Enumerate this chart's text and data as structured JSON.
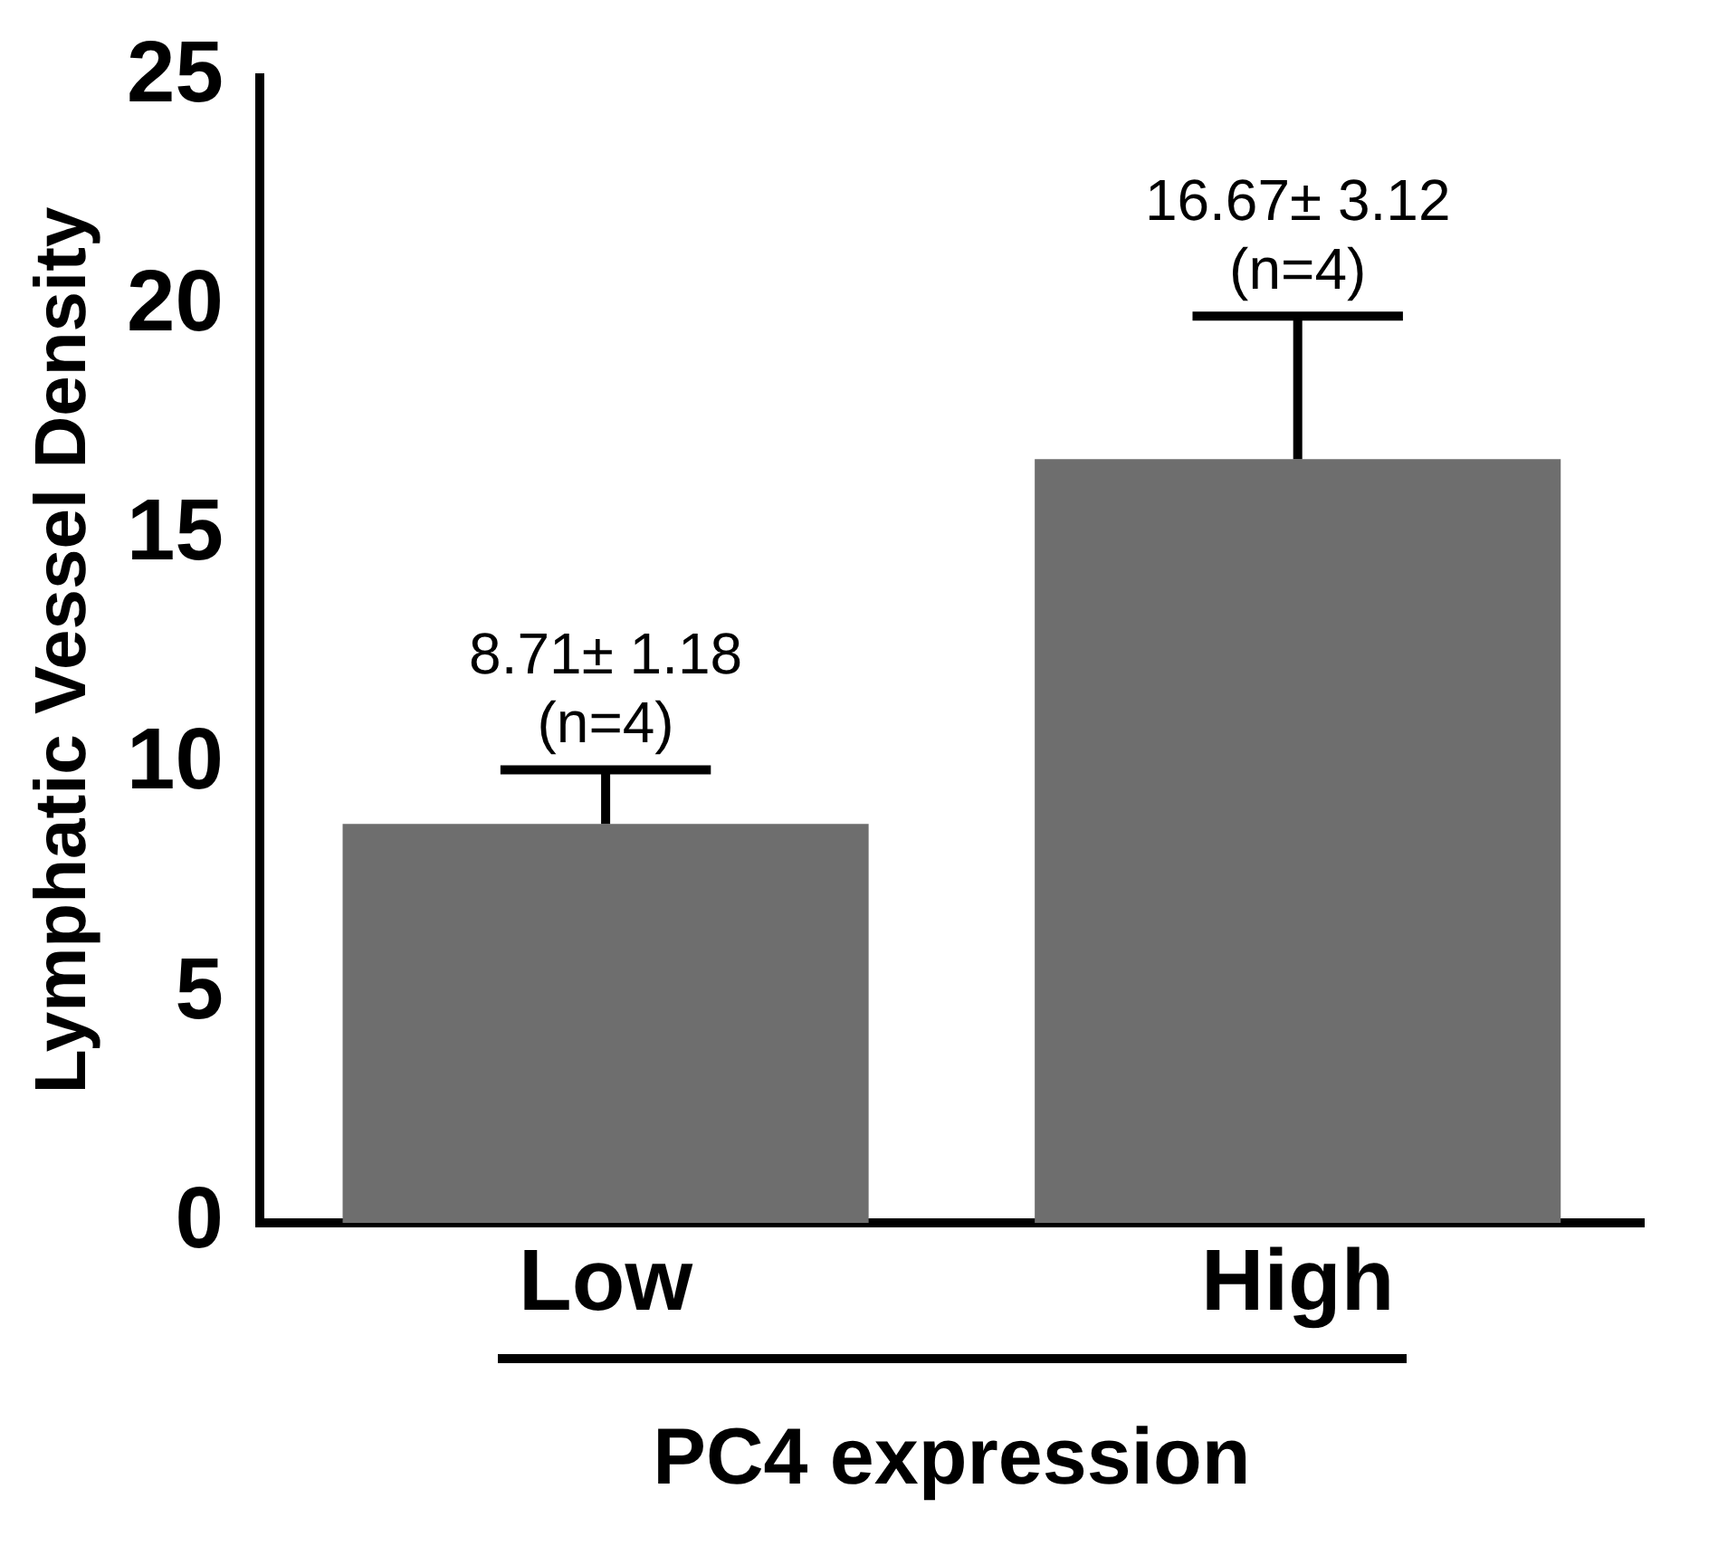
{
  "chart_data": {
    "type": "bar",
    "ylabel": "Lymphatic Vessel Density",
    "xlabel": "PC4 expression",
    "categories": [
      "Low",
      "High"
    ],
    "values": [
      8.71,
      16.67
    ],
    "color": "#6e6e6e",
    "errors": [
      [
        8.71,
        9.89
      ],
      [
        16.67,
        19.79
      ]
    ],
    "ylim": [
      0,
      25
    ],
    "yticks": [
      0,
      5,
      10,
      15,
      20,
      25
    ],
    "grid": false,
    "legend": false,
    "annotations": [
      {
        "text": "8.71± 1.18",
        "x": "Low",
        "y": 9.89
      },
      {
        "text": "(n=4)",
        "x": "Low",
        "y": 9.89
      },
      {
        "text": "16.67± 3.12",
        "x": "High",
        "y": 19.79
      },
      {
        "text": "(n=4)",
        "x": "High",
        "y": 19.79
      }
    ]
  }
}
